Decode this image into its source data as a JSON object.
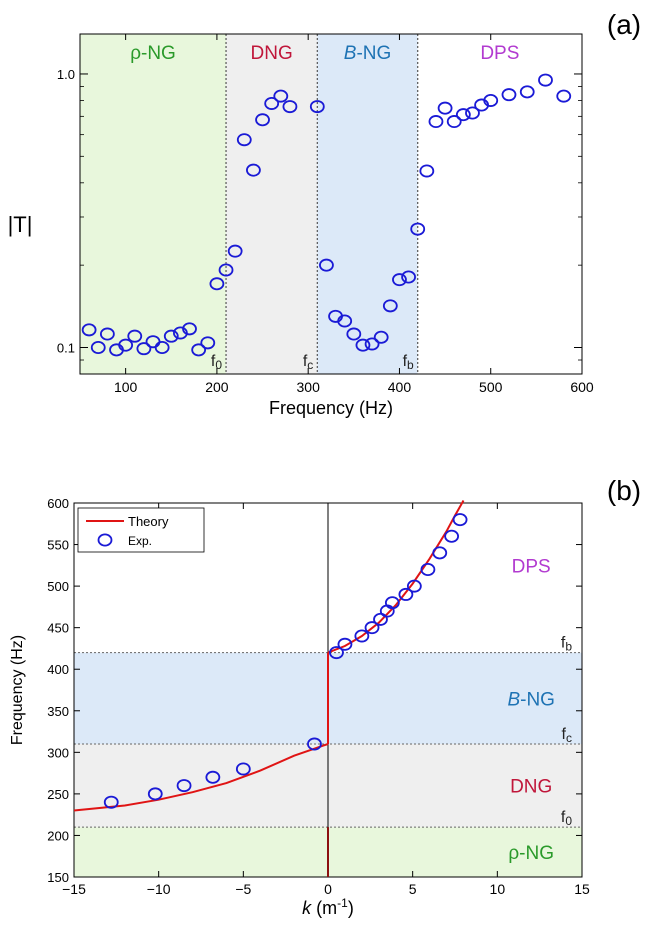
{
  "chart_data": [
    {
      "panel_label": "(a)",
      "type": "scatter",
      "xlabel": "Frequency (Hz)",
      "ylabel": "|T|",
      "xlim": [
        50,
        600
      ],
      "ylim": [
        0.08,
        1.4
      ],
      "y_scale": "log",
      "x_ticks": [
        100,
        200,
        300,
        400,
        500,
        600
      ],
      "y_ticks": [
        0.1,
        1.0
      ],
      "y_tick_labels": [
        "0.1",
        "1.0"
      ],
      "regions": [
        {
          "label": "ρ-NG",
          "x_range": [
            50,
            210
          ],
          "fill": "#e8f7dc",
          "label_color": "#2a9a2a"
        },
        {
          "label": "DNG",
          "x_range": [
            210,
            310
          ],
          "fill": "#efefef",
          "label_color": "#c0163a"
        },
        {
          "label_prefix": "B",
          "label_suffix": "-NG",
          "x_range": [
            310,
            420
          ],
          "fill": "#dce9f8",
          "label_color": "#1e73b4"
        },
        {
          "label": "DPS",
          "x_range": [
            420,
            600
          ],
          "fill": "#ffffff",
          "label_color": "#b23ad0"
        }
      ],
      "boundaries": [
        {
          "x": 210,
          "base": "f",
          "sub": "0"
        },
        {
          "x": 310,
          "base": "f",
          "sub": "c"
        },
        {
          "x": 420,
          "base": "f",
          "sub": "b"
        }
      ],
      "marker_color": "#1a1ad6",
      "x": [
        60,
        70,
        80,
        90,
        100,
        110,
        120,
        130,
        140,
        150,
        160,
        170,
        180,
        190,
        200,
        210,
        220,
        230,
        240,
        250,
        260,
        270,
        280,
        310,
        320,
        330,
        340,
        350,
        360,
        370,
        380,
        390,
        400,
        410,
        420,
        430,
        440,
        450,
        460,
        470,
        480,
        490,
        500,
        520,
        540,
        560,
        580
      ],
      "y": [
        0.116,
        0.1,
        0.112,
        0.098,
        0.102,
        0.11,
        0.099,
        0.105,
        0.1,
        0.11,
        0.113,
        0.117,
        0.098,
        0.104,
        0.171,
        0.192,
        0.225,
        0.575,
        0.445,
        0.68,
        0.78,
        0.83,
        0.76,
        0.76,
        0.2,
        0.13,
        0.125,
        0.112,
        0.102,
        0.103,
        0.109,
        0.142,
        0.177,
        0.181,
        0.271,
        0.442,
        0.67,
        0.75,
        0.67,
        0.71,
        0.72,
        0.77,
        0.8,
        0.84,
        0.86,
        0.95,
        0.83
      ]
    },
    {
      "panel_label": "(b)",
      "type": "line",
      "xlabel_var": "k",
      "xlabel_unit": " (m",
      "xlabel_exp": "-1",
      "xlabel_close": ")",
      "ylabel": "Frequency (Hz)",
      "xlim": [
        -15,
        15
      ],
      "ylim": [
        150,
        600
      ],
      "x_ticks": [
        -15,
        -10,
        -5,
        0,
        5,
        10,
        15
      ],
      "x_tick_labels": [
        "−15",
        "−10",
        "−5",
        "0",
        "5",
        "10",
        "15"
      ],
      "y_ticks": [
        150,
        200,
        250,
        300,
        350,
        400,
        450,
        500,
        550,
        600
      ],
      "bands": [
        {
          "label": "ρ-NG",
          "y_range": [
            150,
            210
          ],
          "fill": "#e8f7dc",
          "label_color": "#2a9a2a",
          "label_x": 12,
          "label_y": 180
        },
        {
          "label": "DNG",
          "y_range": [
            210,
            310
          ],
          "fill": "#efefef",
          "label_color": "#c0163a",
          "label_x": 12,
          "label_y": 260
        },
        {
          "label_prefix": "B",
          "label_suffix": "-NG",
          "y_range": [
            310,
            420
          ],
          "fill": "#dce9f8",
          "label_color": "#1e73b4",
          "label_x": 12,
          "label_y": 365
        },
        {
          "label": "DPS",
          "y_range": [
            420,
            600
          ],
          "fill": "#ffffff",
          "label_color": "#b23ad0",
          "label_x": 12,
          "label_y": 525
        }
      ],
      "boundaries": [
        {
          "y": 210,
          "base": "f",
          "sub": "0"
        },
        {
          "y": 310,
          "base": "f",
          "sub": "c"
        },
        {
          "y": 420,
          "base": "f",
          "sub": "b"
        }
      ],
      "legend": {
        "placement": "top-left",
        "entries": [
          "Theory",
          "Exp."
        ]
      },
      "series": [
        {
          "name": "Theory",
          "kind": "line",
          "color": "#e01414",
          "segments": [
            {
              "x": [
                -15,
                -12,
                -10,
                -8,
                -6,
                -4,
                -2,
                -1,
                -0.3,
                0
              ],
              "y": [
                230,
                236,
                243,
                252,
                263,
                278,
                296,
                303,
                308,
                310
              ]
            },
            {
              "x": [
                0,
                0
              ],
              "y": [
                310,
                420
              ]
            },
            {
              "x": [
                0,
                1,
                2,
                3,
                4,
                5,
                6,
                7,
                7.5,
                8
              ],
              "y": [
                420,
                428,
                440,
                456,
                477,
                503,
                533,
                566,
                585,
                603
              ]
            }
          ]
        },
        {
          "name": "Exp.",
          "kind": "scatter",
          "color": "#1a1ad6",
          "x": [
            -12.8,
            -10.2,
            -8.5,
            -6.8,
            -5,
            -0.8,
            0.5,
            1,
            2,
            2.6,
            3.1,
            3.5,
            3.8,
            4.6,
            5.1,
            5.9,
            6.6,
            7.3,
            7.8
          ],
          "y": [
            240,
            250,
            260,
            270,
            280,
            310,
            420,
            430,
            440,
            450,
            460,
            470,
            480,
            490,
            500,
            520,
            540,
            560,
            580
          ]
        }
      ],
      "vertical_line": {
        "x": 0,
        "y_range": [
          150,
          210
        ],
        "color": "#8b1010"
      }
    }
  ]
}
